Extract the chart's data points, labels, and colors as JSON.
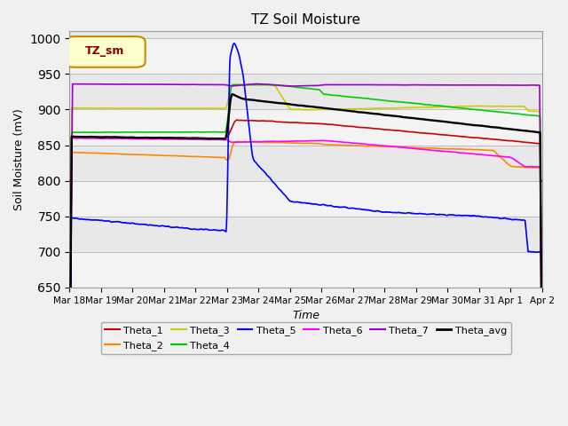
{
  "title": "TZ Soil Moisture",
  "xlabel": "Time",
  "ylabel": "Soil Moisture (mV)",
  "ylim": [
    650,
    1010
  ],
  "yticks": [
    650,
    700,
    750,
    800,
    850,
    900,
    950,
    1000
  ],
  "background_color": "#f0f0f0",
  "plot_bg_color": "#e8e8e8",
  "legend_label": "TZ_sm",
  "legend_bg": "#ffffcc",
  "legend_border": "#cc8800",
  "series_colors": {
    "Theta_1": "#cc0000",
    "Theta_2": "#ff8800",
    "Theta_3": "#cccc00",
    "Theta_4": "#00cc00",
    "Theta_5": "#0000ff",
    "Theta_6": "#ff00ff",
    "Theta_7": "#9900cc",
    "Theta_avg": "#000000"
  },
  "date_labels": [
    "Mar 18",
    "Mar 19",
    "Mar 20",
    "Mar 21",
    "Mar 22",
    "Mar 23",
    "Mar 24",
    "Mar 25",
    "Mar 26",
    "Mar 27",
    "Mar 28",
    "Mar 29",
    "Mar 30",
    "Mar 31",
    "Apr 1",
    "Apr 2"
  ],
  "date_ticks": [
    0,
    1,
    2,
    3,
    4,
    5,
    6,
    7,
    8,
    9,
    10,
    11,
    12,
    13,
    14,
    15
  ]
}
